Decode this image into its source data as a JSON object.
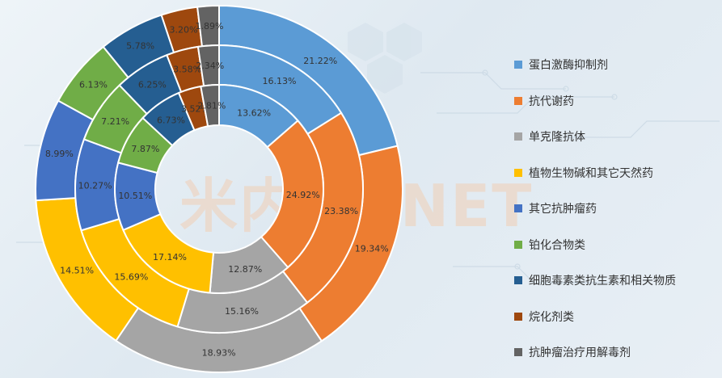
{
  "watermark": "米内MENET",
  "colors": {
    "label": "#333333",
    "ring_edge": "#ffffff"
  },
  "chart_data": {
    "type": "pie",
    "title": "",
    "rings": [
      {
        "ring": "outer",
        "values": [
          21.22,
          19.34,
          18.93,
          14.51,
          8.99,
          6.13,
          5.78,
          3.2,
          1.89
        ]
      },
      {
        "ring": "middle",
        "values": [
          16.13,
          23.38,
          15.16,
          15.69,
          10.27,
          7.21,
          6.25,
          3.58,
          2.34
        ]
      },
      {
        "ring": "inner",
        "values": [
          13.62,
          24.92,
          12.87,
          17.14,
          10.51,
          7.87,
          6.73,
          3.52,
          2.81
        ]
      }
    ],
    "categories": [
      "蛋白激酶抑制剂",
      "抗代谢药",
      "单克隆抗体",
      "植物生物碱和其它天然药",
      "其它抗肿瘤药",
      "铂化合物类",
      "细胞毒素类抗生素和相关物质",
      "烷化剂类",
      "抗肿瘤治疗用解毒剂"
    ],
    "category_colors": [
      "#5b9bd5",
      "#ed7d31",
      "#a5a5a5",
      "#ffc000",
      "#4472c4",
      "#70ad47",
      "#255e91",
      "#9e480e",
      "#636363"
    ],
    "legend_position": "right"
  }
}
